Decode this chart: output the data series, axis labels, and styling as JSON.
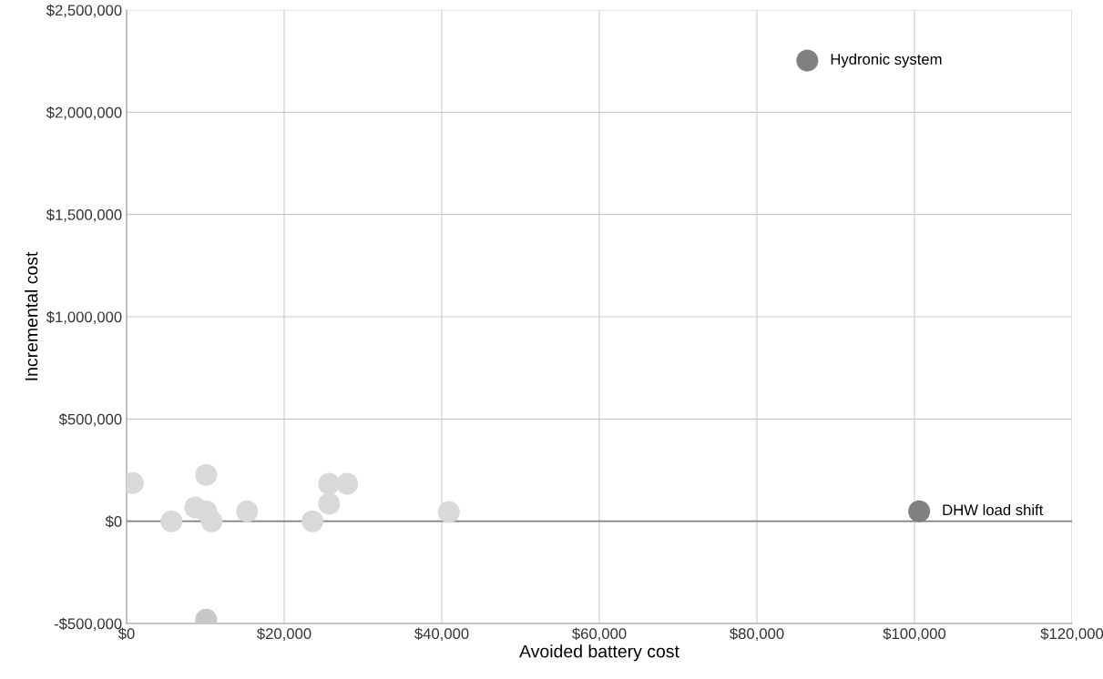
{
  "chart_data": {
    "type": "scatter",
    "xlabel": "Avoided battery cost",
    "ylabel": "Incremental cost",
    "xlim": [
      0,
      120000
    ],
    "ylim": [
      -500000,
      2500000
    ],
    "xticks": [
      {
        "value": 0,
        "label": "$0"
      },
      {
        "value": 20000,
        "label": "$20,000"
      },
      {
        "value": 40000,
        "label": "$40,000"
      },
      {
        "value": 60000,
        "label": "$60,000"
      },
      {
        "value": 80000,
        "label": "$80,000"
      },
      {
        "value": 100000,
        "label": "$100,000"
      },
      {
        "value": 120000,
        "label": "$120,000"
      }
    ],
    "yticks": [
      {
        "value": -500000,
        "label": "-$500,000"
      },
      {
        "value": 0,
        "label": "$0"
      },
      {
        "value": 500000,
        "label": "$500,000"
      },
      {
        "value": 1000000,
        "label": "$1,000,000"
      },
      {
        "value": 1500000,
        "label": "$1,500,000"
      },
      {
        "value": 2000000,
        "label": "$2,000,000"
      },
      {
        "value": 2500000,
        "label": "$2,500,000"
      }
    ],
    "grid": true,
    "marker": "circle",
    "ref_lines": [
      {
        "axis": "y",
        "value": 0,
        "color": "#808080"
      }
    ],
    "series": [
      {
        "color": "#d9d9d9",
        "x": [
          800,
          5700,
          8700,
          10100,
          10100,
          10800,
          15300,
          23600,
          25700,
          25700,
          28000,
          40900
        ],
        "values": [
          187000,
          0,
          67000,
          227000,
          49000,
          0,
          49000,
          0,
          183000,
          85000,
          183000,
          45000
        ]
      },
      {
        "color": "#c8c8c8",
        "x": [
          10100
        ],
        "values": [
          -481000
        ]
      },
      {
        "color": "#808080",
        "x": [
          86400,
          100600
        ],
        "values": [
          2253000,
          49000
        ]
      }
    ],
    "annotations": [
      {
        "text": "Hydronic system",
        "x": 86400,
        "y": 2253000
      },
      {
        "text": "DHW load shift",
        "x": 100600,
        "y": 49000
      }
    ]
  }
}
